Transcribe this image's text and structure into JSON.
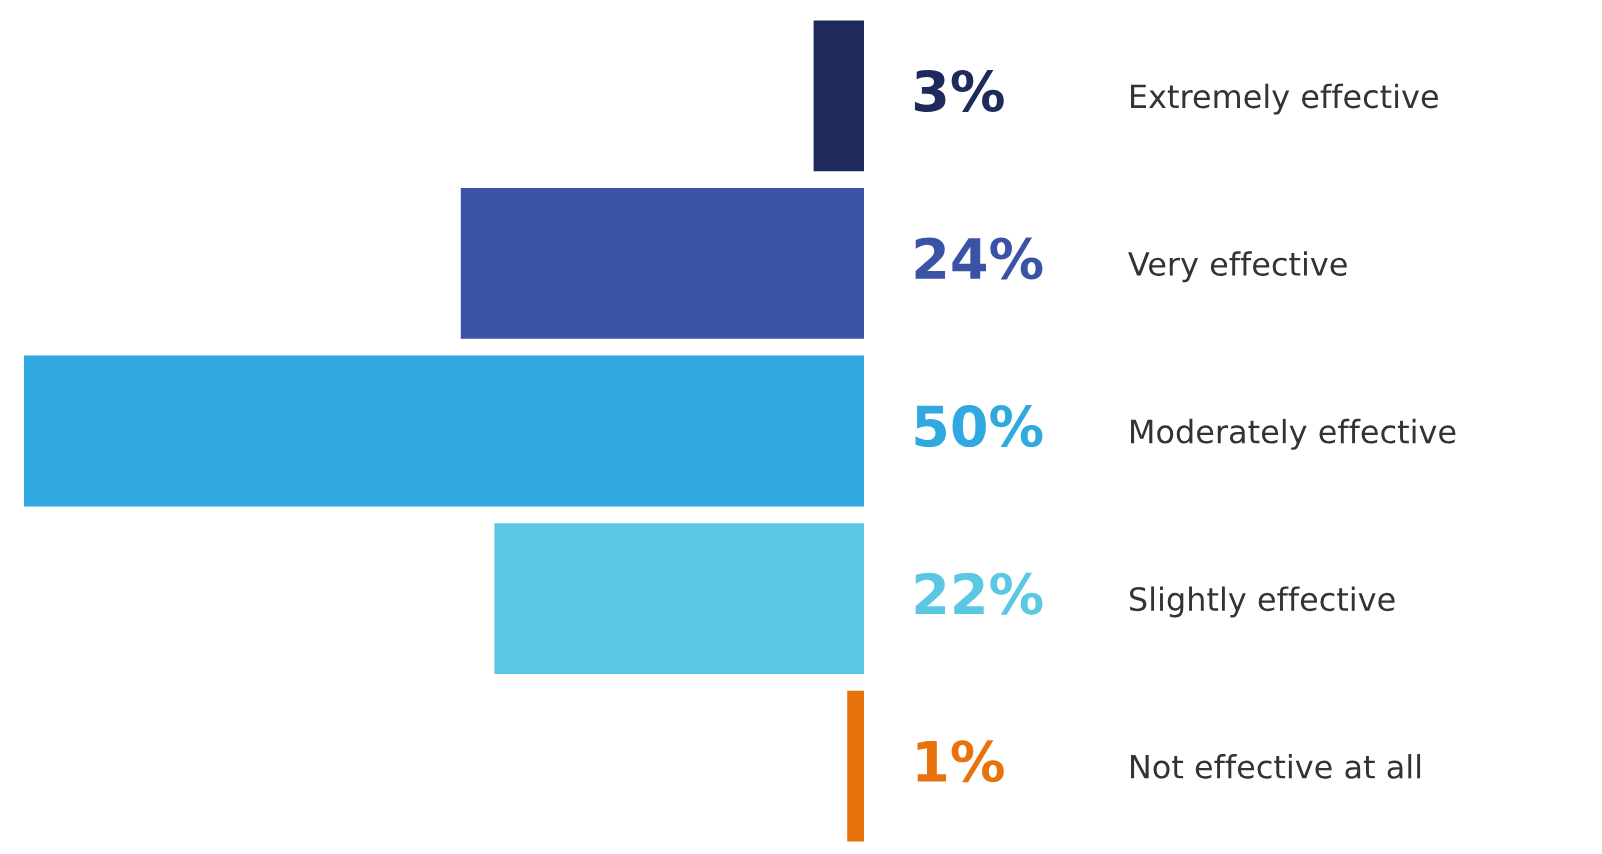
{
  "chart_data": {
    "type": "bar",
    "orientation": "horizontal",
    "categories": [
      "Extremely effective",
      "Very effective",
      "Moderately effective",
      "Slightly effective",
      "Not effective at all"
    ],
    "values": [
      3,
      24,
      50,
      22,
      1
    ],
    "colors": [
      "#1f2a5c",
      "#3a53a4",
      "#30a8e0",
      "#5bc8e3",
      "#e8730c"
    ],
    "value_labels": [
      "3%",
      "24%",
      "50%",
      "22%",
      "1%"
    ],
    "xlim": [
      50,
      0
    ],
    "grid": false,
    "legend": false
  }
}
